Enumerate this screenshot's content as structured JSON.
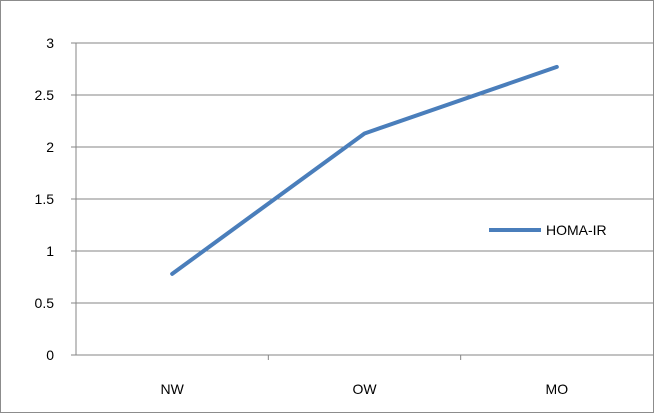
{
  "chart_data": {
    "type": "line",
    "categories": [
      "NW",
      "OW",
      "MO"
    ],
    "series": [
      {
        "name": "HOMA-IR",
        "values": [
          0.78,
          2.13,
          2.77
        ]
      }
    ],
    "ylim": [
      0,
      3
    ],
    "yticks": [
      "0",
      "0.5",
      "1",
      "1.5",
      "2",
      "2.5",
      "3"
    ],
    "grid": true,
    "legend_position": "right",
    "colors": {
      "series": "#4a7ebb",
      "grid": "#868686",
      "axis": "#868686"
    }
  }
}
